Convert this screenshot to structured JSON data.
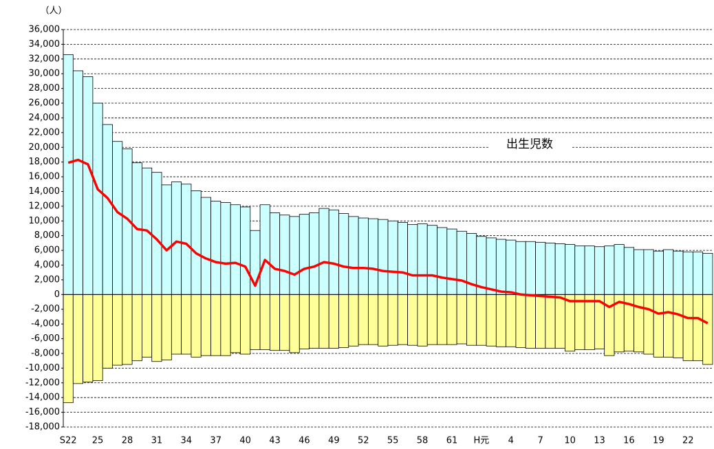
{
  "chart_data": {
    "type": "bar-line",
    "y_unit_label": "（人）",
    "annotation": "出生児数",
    "categories": [
      "S22",
      null,
      null,
      "25",
      null,
      null,
      "28",
      null,
      null,
      "31",
      null,
      null,
      "34",
      null,
      null,
      "37",
      null,
      null,
      "40",
      null,
      null,
      "43",
      null,
      null,
      "46",
      null,
      null,
      "49",
      null,
      null,
      "52",
      null,
      null,
      "55",
      null,
      null,
      "58",
      null,
      null,
      "61",
      null,
      null,
      "H元",
      null,
      null,
      "4",
      null,
      null,
      "7",
      null,
      null,
      "10",
      null,
      null,
      "13",
      null,
      null,
      "16",
      null,
      null,
      "19",
      null,
      null,
      "22",
      null,
      null
    ],
    "series": [
      {
        "kind": "bar",
        "color": "#ccffff",
        "values": [
          32600,
          30400,
          29600,
          26000,
          23100,
          20800,
          19800,
          17900,
          17200,
          16600,
          14900,
          15300,
          15000,
          14100,
          13200,
          12700,
          12500,
          12200,
          11900,
          8700,
          12200,
          11100,
          10800,
          10600,
          10900,
          11100,
          11700,
          11500,
          11000,
          10600,
          10400,
          10300,
          10200,
          10000,
          9800,
          9500,
          9600,
          9400,
          9100,
          8900,
          8600,
          8300,
          7900,
          7700,
          7500,
          7400,
          7200,
          7200,
          7100,
          7000,
          6900,
          6800,
          6600,
          6600,
          6500,
          6600,
          6800,
          6400,
          6100,
          6100,
          5900,
          6100,
          5900,
          5800,
          5800,
          5600
        ]
      },
      {
        "kind": "bar",
        "color": "#ffff99",
        "values": [
          -14700,
          -12100,
          -11900,
          -11700,
          -10000,
          -9600,
          -9500,
          -9000,
          -8500,
          -9100,
          -8900,
          -8100,
          -8100,
          -8500,
          -8300,
          -8300,
          -8300,
          -7900,
          -8100,
          -7500,
          -7500,
          -7600,
          -7600,
          -7900,
          -7400,
          -7300,
          -7300,
          -7300,
          -7200,
          -7000,
          -6800,
          -6800,
          -7000,
          -6900,
          -6800,
          -6900,
          -7000,
          -6800,
          -6800,
          -6800,
          -6700,
          -6900,
          -6900,
          -7000,
          -7100,
          -7100,
          -7200,
          -7300,
          -7300,
          -7300,
          -7300,
          -7700,
          -7500,
          -7500,
          -7400,
          -8300,
          -7800,
          -7700,
          -7800,
          -8100,
          -8500,
          -8500,
          -8600,
          -9000,
          -9000,
          -9500
        ]
      },
      {
        "kind": "line",
        "color": "#ff0000",
        "values": [
          17900,
          18300,
          17700,
          14300,
          13100,
          11200,
          10300,
          8900,
          8700,
          7500,
          6000,
          7200,
          6900,
          5600,
          4900,
          4400,
          4200,
          4300,
          3800,
          1200,
          4700,
          3500,
          3200,
          2700,
          3500,
          3800,
          4400,
          4200,
          3800,
          3600,
          3600,
          3500,
          3200,
          3100,
          3000,
          2600,
          2600,
          2600,
          2300,
          2100,
          1900,
          1400,
          1000,
          700,
          400,
          300,
          0,
          -100,
          -200,
          -300,
          -400,
          -900,
          -900,
          -900,
          -900,
          -1700,
          -1000,
          -1300,
          -1700,
          -2000,
          -2600,
          -2400,
          -2700,
          -3200,
          -3200,
          -3900
        ]
      }
    ],
    "ylim": [
      -18000,
      36000
    ],
    "yticks": [
      {
        "value": -18000,
        "label": "-18,000"
      },
      {
        "value": -16000,
        "label": "-16,000"
      },
      {
        "value": -14000,
        "label": "-14,000"
      },
      {
        "value": -12000,
        "label": "-12,000"
      },
      {
        "value": -10000,
        "label": "-10,000"
      },
      {
        "value": -8000,
        "label": "-8,000"
      },
      {
        "value": -6000,
        "label": "-6,000"
      },
      {
        "value": -4000,
        "label": "-4,000"
      },
      {
        "value": -2000,
        "label": "-2,000"
      },
      0,
      {
        "value": 2000,
        "label": "2,000"
      },
      {
        "value": 4000,
        "label": "4,000"
      },
      {
        "value": 6000,
        "label": "6,000"
      },
      {
        "value": 8000,
        "label": "8,000"
      },
      {
        "value": 10000,
        "label": "10,000"
      },
      {
        "value": 12000,
        "label": "12,000"
      },
      {
        "value": 14000,
        "label": "14,000"
      },
      {
        "value": 16000,
        "label": "16,000"
      },
      {
        "value": 18000,
        "label": "18,000"
      },
      {
        "value": 20000,
        "label": "20,000"
      },
      {
        "value": 22000,
        "label": "22,000"
      },
      {
        "value": 24000,
        "label": "24,000"
      },
      {
        "value": 26000,
        "label": "26,000"
      },
      {
        "value": 28000,
        "label": "28,000"
      },
      {
        "value": 30000,
        "label": "30,000"
      },
      {
        "value": 32000,
        "label": "32,000"
      },
      {
        "value": 34000,
        "label": "34,000"
      },
      {
        "value": 36000,
        "label": "36,000"
      }
    ],
    "grid": true
  }
}
